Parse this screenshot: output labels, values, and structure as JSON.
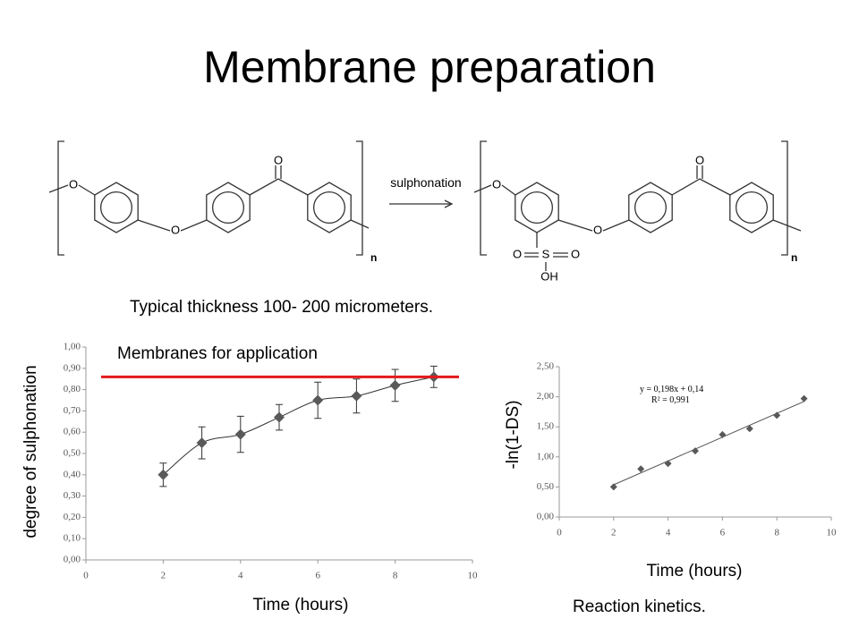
{
  "slide": {
    "title": "Membrane preparation",
    "note": "Typical thickness 100- 200 micrometers.",
    "caption": "Reaction kinetics."
  },
  "scheme": {
    "arrow_label": "sulphonation",
    "left_subscript": "n",
    "right_subscript": "n",
    "left_atoms": [
      "O",
      "O",
      "O"
    ],
    "right_atoms": [
      "O",
      "O",
      "O",
      "S",
      "O",
      "O",
      "OH"
    ]
  },
  "chart_data": [
    {
      "type": "scatter",
      "x_label": "Time (hours)",
      "y_label": "degree  of sulphonation",
      "x": [
        2,
        3,
        4,
        5,
        6,
        7,
        8,
        9
      ],
      "values": [
        0.4,
        0.55,
        0.59,
        0.67,
        0.75,
        0.77,
        0.82,
        0.86
      ],
      "errors": [
        0.055,
        0.075,
        0.085,
        0.06,
        0.085,
        0.08,
        0.075,
        0.05
      ],
      "color": "#595959",
      "trend": true,
      "reference_line": {
        "value": 0.86,
        "label": "Membranes for application",
        "color": "#e31a1c"
      },
      "xlim": [
        0,
        10
      ],
      "xticks": [
        0,
        2,
        4,
        6,
        8,
        10
      ],
      "ylim": [
        0,
        1
      ],
      "yticks": [
        {
          "value": 0,
          "label": "0,00"
        },
        {
          "value": 0.1,
          "label": "0,10"
        },
        {
          "value": 0.2,
          "label": "0,20"
        },
        {
          "value": 0.3,
          "label": "0,30"
        },
        {
          "value": 0.4,
          "label": "0,40"
        },
        {
          "value": 0.5,
          "label": "0,50"
        },
        {
          "value": 0.6,
          "label": "0,60"
        },
        {
          "value": 0.7,
          "label": "0,70"
        },
        {
          "value": 0.8,
          "label": "0,80"
        },
        {
          "value": 0.9,
          "label": "0,90"
        },
        {
          "value": 1,
          "label": "1,00"
        }
      ]
    },
    {
      "type": "scatter",
      "x_label": "Time (hours)",
      "y_label": "-ln(1-DS)",
      "x": [
        2,
        3,
        4,
        5,
        6,
        7,
        8,
        9
      ],
      "values": [
        0.5,
        0.8,
        0.89,
        1.1,
        1.37,
        1.47,
        1.69,
        1.97
      ],
      "color": "#595959",
      "fit": {
        "slope": 0.198,
        "intercept": 0.14,
        "equation": "y = 0,198x + 0,14",
        "r2": "R² = 0,991"
      },
      "xlim": [
        0,
        10
      ],
      "xticks": [
        0,
        2,
        4,
        6,
        8,
        10
      ],
      "ylim": [
        0,
        2.5
      ],
      "yticks": [
        {
          "value": 0,
          "label": "0,00"
        },
        {
          "value": 0.5,
          "label": "0,50"
        },
        {
          "value": 1,
          "label": "1,00"
        },
        {
          "value": 1.5,
          "label": "1,50"
        },
        {
          "value": 2,
          "label": "2,00"
        },
        {
          "value": 2.5,
          "label": "2,50"
        }
      ]
    }
  ]
}
